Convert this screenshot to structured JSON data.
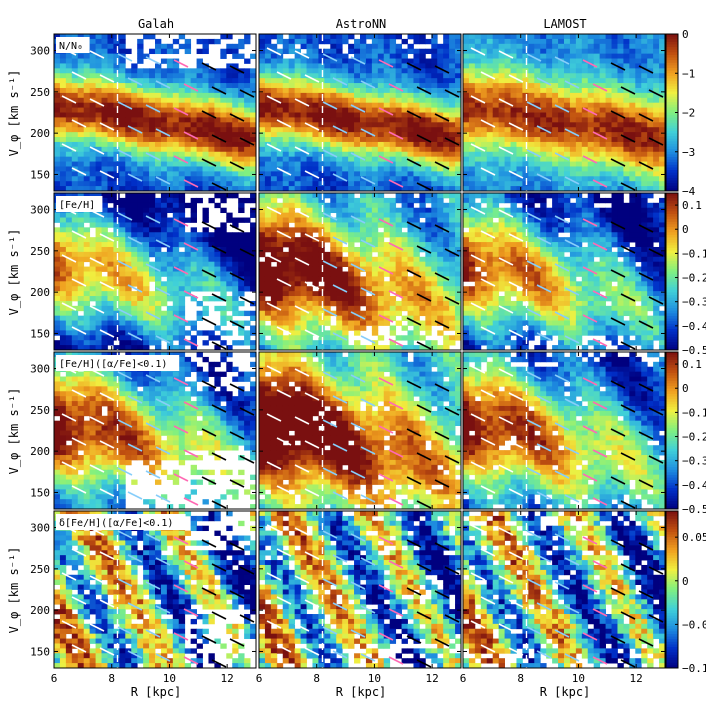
{
  "chart_data": {
    "type": "heatmap",
    "columns": [
      "Galah",
      "AstroNN",
      "LAMOST"
    ],
    "x": {
      "label": "R [kpc]",
      "range": [
        6,
        13
      ],
      "ticks": [
        6,
        8,
        10,
        12
      ],
      "solar_radius_marker": 8.2
    },
    "y": {
      "label": "V_φ [km s⁻¹]",
      "range": [
        130,
        320
      ],
      "ticks": [
        150,
        200,
        250,
        300
      ]
    },
    "rows": [
      {
        "label": "N/N₀",
        "colorbar": {
          "range": [
            -4,
            0
          ],
          "ticks": [
            0,
            -1,
            -2,
            -3,
            -4
          ],
          "tick_labels": [
            "0",
            "−1",
            "−2",
            "−3",
            "−4"
          ]
        },
        "field": "log relative star density; peak near V_φ≈230 km/s, declining slightly with R"
      },
      {
        "label": "[Fe/H]",
        "colorbar": {
          "range": [
            -0.5,
            0.15
          ],
          "ticks": [
            0.1,
            0,
            -0.1,
            -0.2,
            -0.3,
            -0.4,
            -0.5
          ],
          "tick_labels": [
            "0.1",
            "0",
            "−0.1",
            "−0.2",
            "−0.3",
            "−0.4",
            "−0.5"
          ]
        },
        "field": "mean metallicity; high in diagonal ridges across the R–V_φ plane"
      },
      {
        "label": "[Fe/H]([α/Fe]<0.1)",
        "colorbar": {
          "range": [
            -0.5,
            0.15
          ],
          "ticks": [
            0.1,
            0,
            -0.1,
            -0.2,
            -0.3,
            -0.4,
            -0.5
          ],
          "tick_labels": [
            "0.1",
            "0",
            "−0.1",
            "−0.2",
            "−0.3",
            "−0.4",
            "−0.5"
          ]
        },
        "field": "mean metallicity of low-alpha stars"
      },
      {
        "label": "δ[Fe/H]([α/Fe]<0.1)",
        "colorbar": {
          "range": [
            -0.1,
            0.08
          ],
          "ticks": [
            0.05,
            0,
            -0.05,
            -0.1
          ],
          "tick_labels": [
            "0.05",
            "0",
            "−0.05",
            "−0.1"
          ]
        },
        "field": "metallicity residuals showing diagonal ridges"
      }
    ],
    "colors": {
      "colormap": [
        "#00007f",
        "#0030c8",
        "#1f8fe0",
        "#40d0d8",
        "#80f080",
        "#f0f040",
        "#f0a020",
        "#c05010",
        "#7a1010"
      ],
      "ridge_lines": [
        "#ffffff",
        "#87cefa",
        "#ff69b4",
        "#000000"
      ]
    }
  }
}
